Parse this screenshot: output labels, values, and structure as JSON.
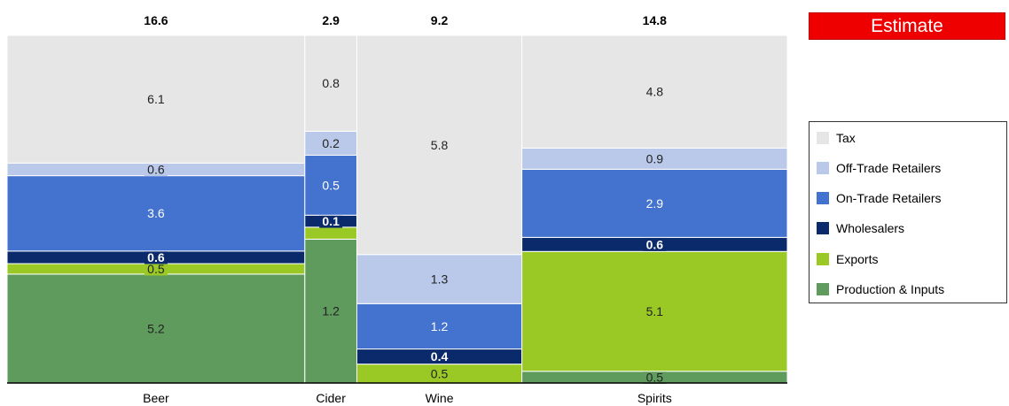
{
  "badge": {
    "label": "Estimate",
    "color": "#ff0000"
  },
  "chart_data": {
    "type": "marimekko",
    "categories": [
      "Beer",
      "Cider",
      "Wine",
      "Spirits"
    ],
    "totals": [
      "16.6",
      "2.9",
      "9.2",
      "14.8"
    ],
    "series": [
      {
        "name": "Production & Inputs",
        "color": "#5e9b5c",
        "values": [
          5.2,
          1.2,
          0,
          0.5
        ],
        "labels": [
          "5.2",
          "1.2",
          "",
          "0.5"
        ]
      },
      {
        "name": "Exports",
        "color": "#9ac925",
        "values": [
          0.5,
          0.1,
          0.5,
          5.1
        ],
        "labels": [
          "0.5",
          "",
          "0.5",
          "5.1"
        ]
      },
      {
        "name": "Wholesalers",
        "color": "#0b2a6b",
        "values": [
          0.6,
          0.1,
          0.4,
          0.6
        ],
        "labels": [
          "0.6",
          "0.1",
          "0.4",
          "0.6"
        ]
      },
      {
        "name": "On-Trade Retailers",
        "color": "#4472cf",
        "values": [
          3.6,
          0.5,
          1.2,
          2.9
        ],
        "labels": [
          "3.6",
          "0.5",
          "1.2",
          "2.9"
        ]
      },
      {
        "name": "Off-Trade Retailers",
        "color": "#bac8ea",
        "values": [
          0.6,
          0.2,
          1.3,
          0.9
        ],
        "labels": [
          "0.6",
          "0.2",
          "1.3",
          "0.9"
        ]
      },
      {
        "name": "Tax",
        "color": "#e6e6e6",
        "values": [
          6.1,
          0.8,
          5.8,
          4.8
        ],
        "labels": [
          "6.1",
          "0.8",
          "5.8",
          "4.8"
        ]
      }
    ],
    "legend_order": [
      "Tax",
      "Off-Trade Retailers",
      "On-Trade Retailers",
      "Wholesalers",
      "Exports",
      "Production & Inputs"
    ],
    "legend_position": "right"
  }
}
